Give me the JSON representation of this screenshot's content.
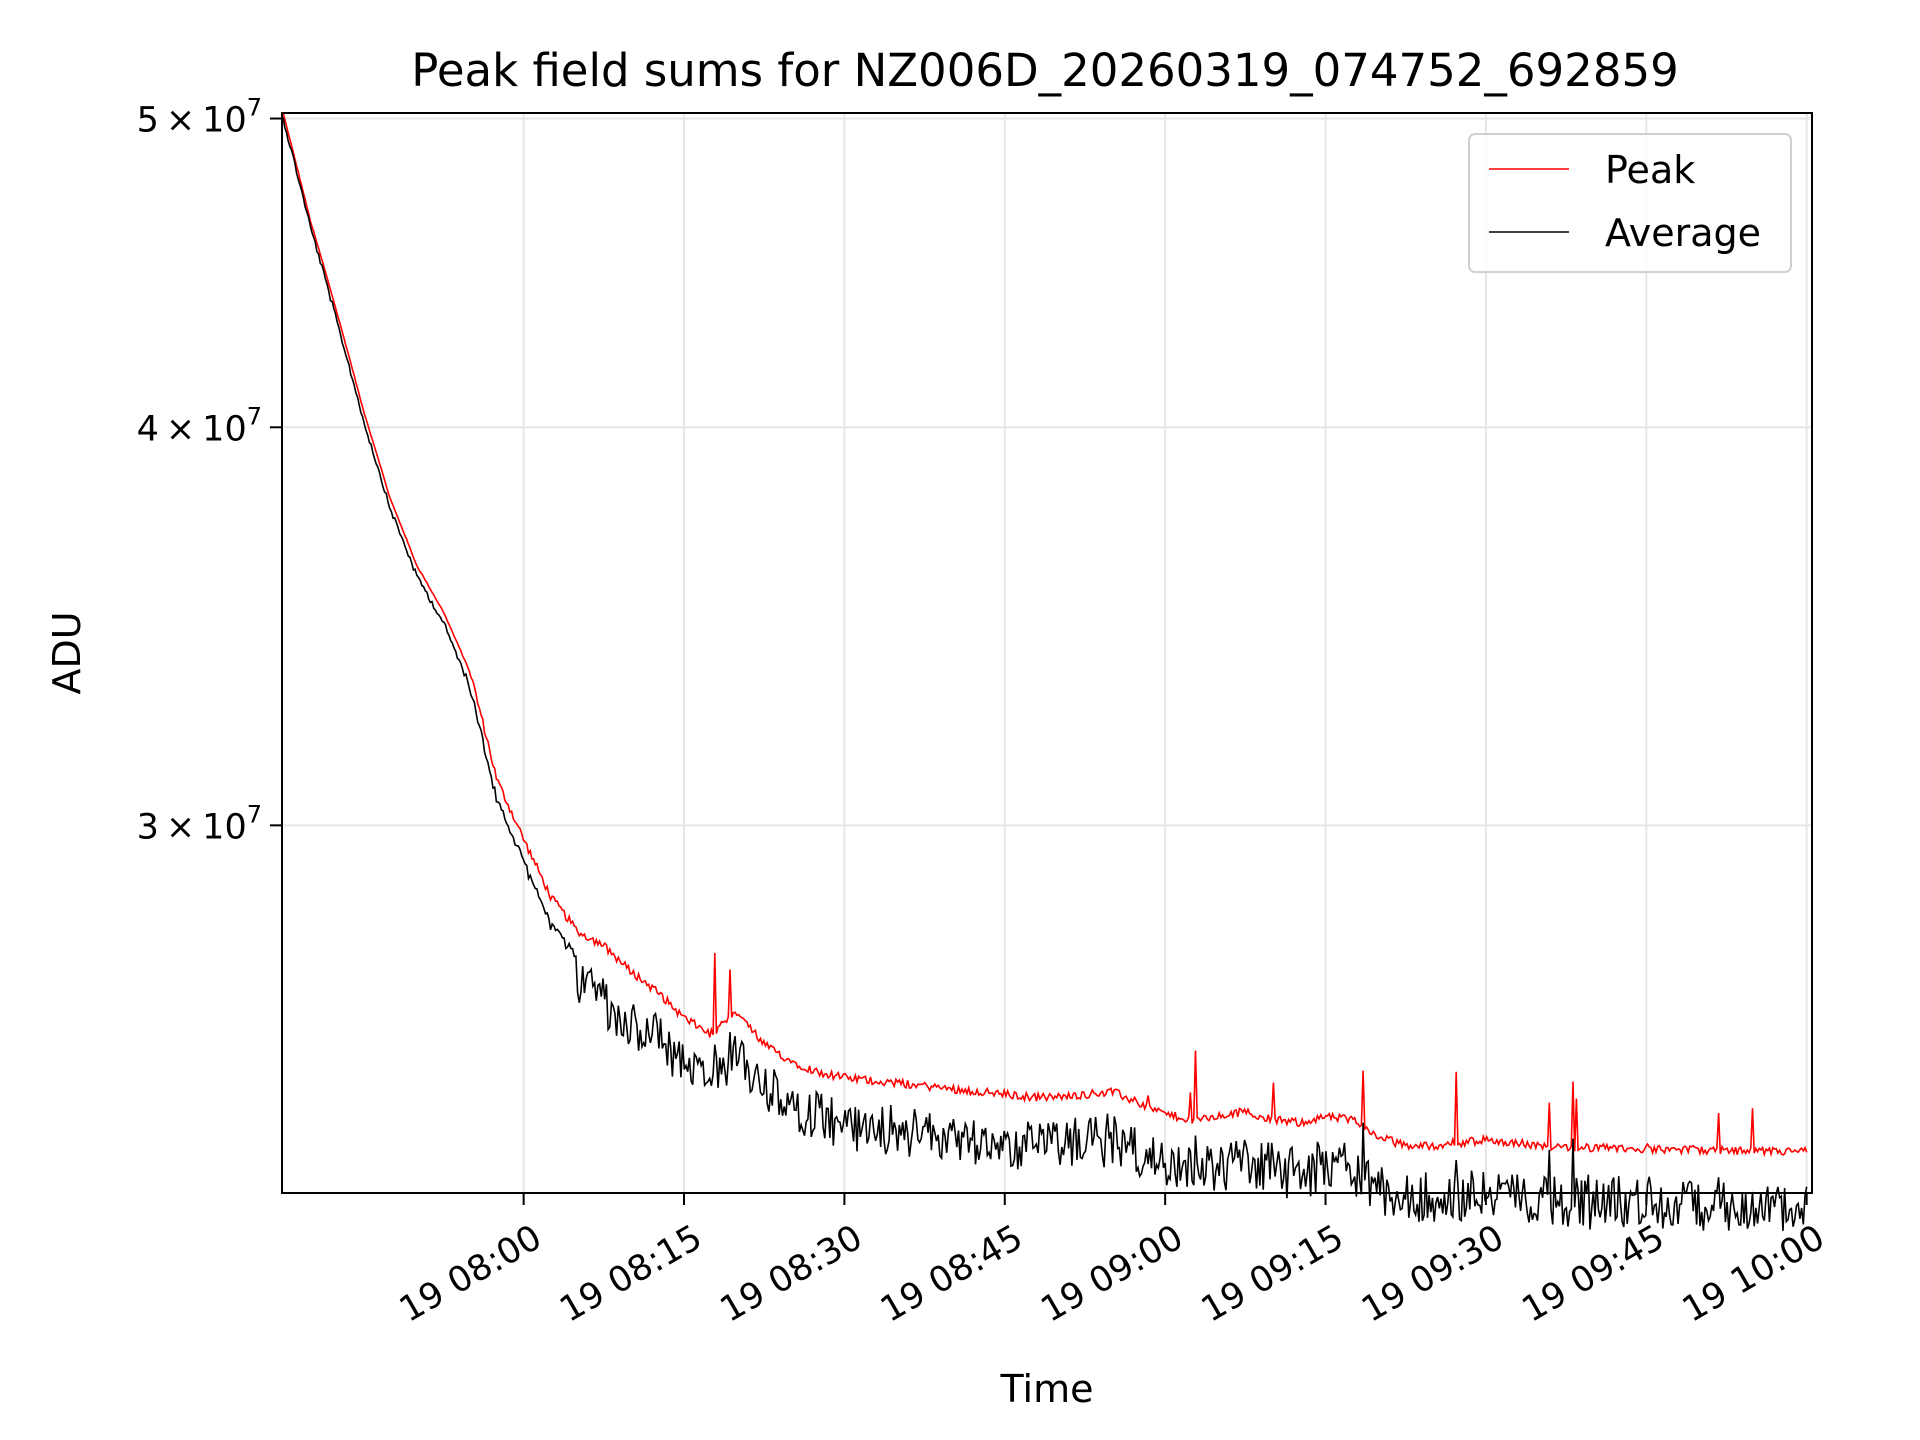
{
  "chart_data": {
    "type": "line",
    "title": "Peak field sums for NZ006D_20260319_074752_692859",
    "xlabel": "Time",
    "ylabel": "ADU",
    "yscale": "log",
    "grid": true,
    "legend_position": "top-right",
    "xlim_minutes": [
      -22.6,
      120.5
    ],
    "ylim": [
      23000000,
      50200000
    ],
    "x_ticks": [
      {
        "minute": 0,
        "label": "19 08:00"
      },
      {
        "minute": 15,
        "label": "19 08:15"
      },
      {
        "minute": 30,
        "label": "19 08:30"
      },
      {
        "minute": 45,
        "label": "19 08:45"
      },
      {
        "minute": 60,
        "label": "19 09:00"
      },
      {
        "minute": 75,
        "label": "19 09:15"
      },
      {
        "minute": 90,
        "label": "19 09:30"
      },
      {
        "minute": 105,
        "label": "19 09:45"
      },
      {
        "minute": 120,
        "label": "19 10:00"
      }
    ],
    "y_ticks": [
      {
        "value": 50000000,
        "mantissa": "5",
        "exponent": "7"
      },
      {
        "value": 40000000,
        "mantissa": "4",
        "exponent": "7"
      },
      {
        "value": 30000000,
        "mantissa": "3",
        "exponent": "7"
      }
    ],
    "x_unit": "minutes after 19 08:00",
    "series": [
      {
        "name": "Peak",
        "color": "#ff0000",
        "x": [
          -22.5,
          -20,
          -17.5,
          -15,
          -12.5,
          -10,
          -7.5,
          -5,
          -2.5,
          0,
          2.5,
          5,
          7.5,
          10,
          12.5,
          15,
          17.5,
          20,
          22.5,
          25,
          27.5,
          30,
          32.5,
          35,
          37.5,
          40,
          42.5,
          45,
          47.5,
          50,
          52.5,
          55,
          57.5,
          60,
          62.5,
          65,
          67.5,
          70,
          72.5,
          75,
          77.5,
          80,
          82.5,
          85,
          87.5,
          90,
          92.5,
          95,
          97.5,
          100,
          102.5,
          105,
          107.5,
          110,
          112.5,
          115,
          117.5,
          120
        ],
        "y": [
          50200000,
          46500000,
          43500000,
          40500000,
          38000000,
          36200000,
          35000000,
          33500000,
          31000000,
          29700000,
          28500000,
          27800000,
          27500000,
          27000000,
          26600000,
          26100000,
          25800000,
          26200000,
          25600000,
          25300000,
          25100000,
          25000000,
          24950000,
          24900000,
          24850000,
          24800000,
          24750000,
          24700000,
          24650000,
          24650000,
          24700000,
          24750000,
          24550000,
          24350000,
          24250000,
          24300000,
          24400000,
          24250000,
          24200000,
          24300000,
          24250000,
          23950000,
          23800000,
          23800000,
          23850000,
          23900000,
          23850000,
          23800000,
          23780000,
          23760000,
          23750000,
          23740000,
          23730000,
          23720000,
          23710000,
          23700000,
          23700000,
          23710000
        ]
      },
      {
        "name": "Average",
        "color": "#000000",
        "x": [
          -22.5,
          -20,
          -17.5,
          -15,
          -12.5,
          -10,
          -7.5,
          -5,
          -2.5,
          0,
          2.5,
          5,
          7.5,
          10,
          12.5,
          15,
          17.5,
          20,
          22.5,
          25,
          27.5,
          30,
          32.5,
          35,
          37.5,
          40,
          42.5,
          45,
          47.5,
          50,
          52.5,
          55,
          57.5,
          60,
          62.5,
          65,
          67.5,
          70,
          72.5,
          75,
          77.5,
          80,
          82.5,
          85,
          87.5,
          90,
          92.5,
          95,
          97.5,
          100,
          102.5,
          105,
          107.5,
          110,
          112.5,
          115,
          117.5,
          120
        ],
        "y": [
          50100000,
          46400000,
          43300000,
          40300000,
          37800000,
          36000000,
          34800000,
          33200000,
          30600000,
          29300000,
          28000000,
          27300000,
          26900000,
          26400000,
          26100000,
          25700000,
          25500000,
          25800000,
          25200000,
          24900000,
          24700000,
          24600000,
          24550000,
          24500000,
          24450000,
          24400000,
          24350000,
          24300000,
          24250000,
          24250000,
          24300000,
          24350000,
          24150000,
          23900000,
          23800000,
          23850000,
          23950000,
          23800000,
          23750000,
          23850000,
          23800000,
          23450000,
          23300000,
          23300000,
          23350000,
          23400000,
          23350000,
          23300000,
          23280000,
          23260000,
          23250000,
          23240000,
          23230000,
          23220000,
          23210000,
          23200000,
          23200000,
          23210000
        ]
      }
    ]
  }
}
